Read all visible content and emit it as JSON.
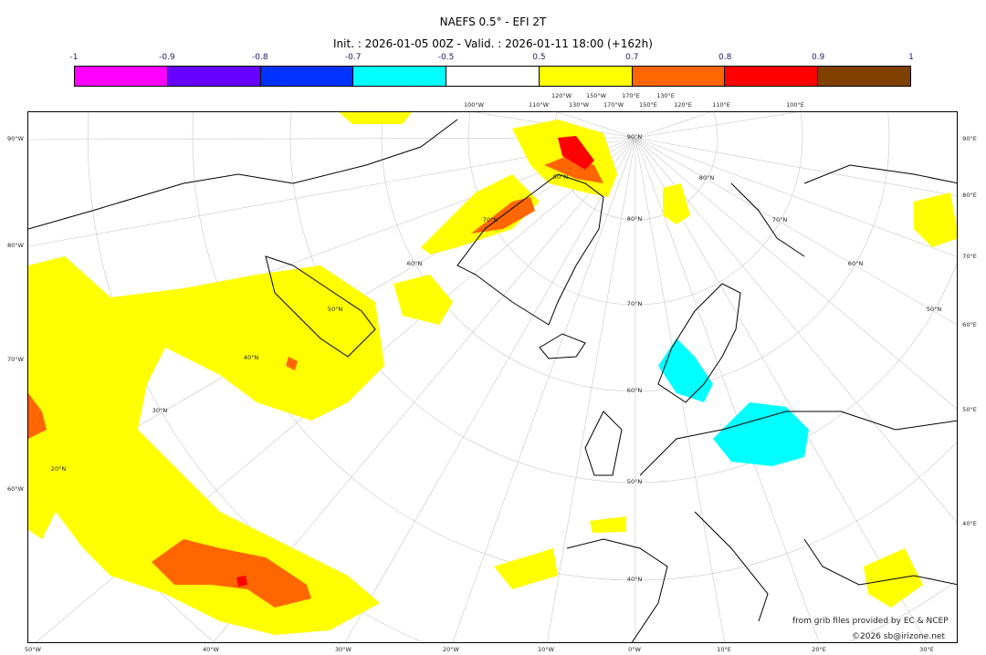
{
  "title": "NAEFS 0.5° - EFI 2T",
  "subtitle": "Init. : 2026-01-05 00Z - Valid. : 2026-01-11 18:00 (+162h)",
  "colorbar": {
    "ticks": [
      "-1",
      "-0.9",
      "-0.8",
      "-0.7",
      "-0.5",
      "0.5",
      "0.7",
      "0.8",
      "0.9",
      "1"
    ],
    "colors": [
      "#ff00ff",
      "#6600ff",
      "#0033ff",
      "#00ffff",
      "#ffffff",
      "#ffff00",
      "#ff6600",
      "#ff0000",
      "#804000"
    ]
  },
  "axes": {
    "bottom": [
      "50°W",
      "40°W",
      "30°W",
      "20°W",
      "10°W",
      "0°W",
      "10°E",
      "20°E",
      "30°E"
    ],
    "left": [
      "90°W",
      "80°W",
      "70°W",
      "60°W"
    ],
    "right": [
      "90°E",
      "80°E",
      "70°E",
      "60°E",
      "50°E",
      "40°E"
    ],
    "top": [
      "100°W",
      "110°W",
      "120°W",
      "130°W",
      "150°W",
      "170°W",
      "170°E",
      "150°E",
      "130°E",
      "120°E",
      "110°E",
      "100°E"
    ],
    "latitudes": [
      "90°N",
      "80°N",
      "70°N",
      "60°N",
      "50°N",
      "40°N",
      "30°N",
      "20°N"
    ]
  },
  "credits": {
    "source": "from grib files provided by EC & NCEP",
    "copyright": "©2026 sb@irizone.net"
  }
}
